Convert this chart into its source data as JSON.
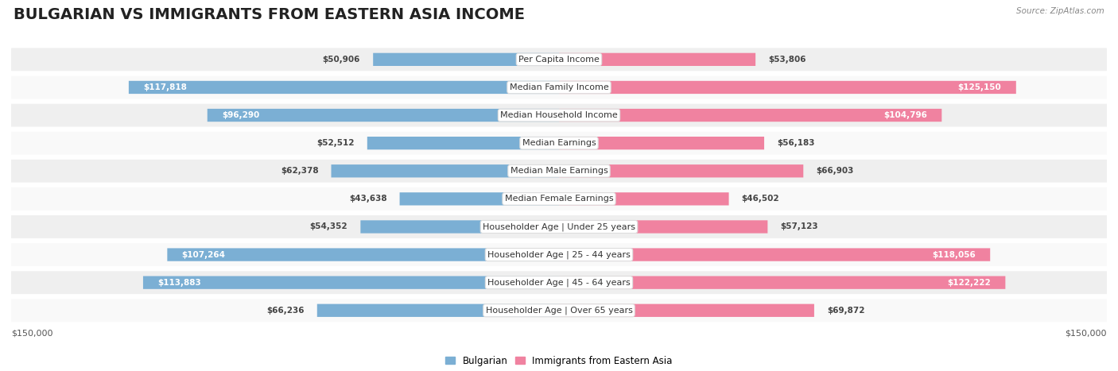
{
  "title": "BULGARIAN VS IMMIGRANTS FROM EASTERN ASIA INCOME",
  "source": "Source: ZipAtlas.com",
  "categories": [
    "Per Capita Income",
    "Median Family Income",
    "Median Household Income",
    "Median Earnings",
    "Median Male Earnings",
    "Median Female Earnings",
    "Householder Age | Under 25 years",
    "Householder Age | 25 - 44 years",
    "Householder Age | 45 - 64 years",
    "Householder Age | Over 65 years"
  ],
  "bulgarian_values": [
    50906,
    117818,
    96290,
    52512,
    62378,
    43638,
    54352,
    107264,
    113883,
    66236
  ],
  "immigrant_values": [
    53806,
    125150,
    104796,
    56183,
    66903,
    46502,
    57123,
    118056,
    122222,
    69872
  ],
  "bulgarian_labels": [
    "$50,906",
    "$117,818",
    "$96,290",
    "$52,512",
    "$62,378",
    "$43,638",
    "$54,352",
    "$107,264",
    "$113,883",
    "$66,236"
  ],
  "immigrant_labels": [
    "$53,806",
    "$125,150",
    "$104,796",
    "$56,183",
    "$66,903",
    "$46,502",
    "$57,123",
    "$118,056",
    "$122,222",
    "$69,872"
  ],
  "bulgarian_color": "#7bafd4",
  "immigrant_color": "#f082a0",
  "max_value": 150000,
  "xlabel_left": "$150,000",
  "xlabel_right": "$150,000",
  "bg_color": "#ffffff",
  "row_bg_even": "#efefef",
  "row_bg_odd": "#f9f9f9",
  "label_bg_color": "#ffffff",
  "title_fontsize": 14,
  "label_fontsize": 8,
  "value_fontsize": 7.5,
  "legend_label1": "Bulgarian",
  "legend_label2": "Immigrants from Eastern Asia",
  "inside_threshold": 70000
}
